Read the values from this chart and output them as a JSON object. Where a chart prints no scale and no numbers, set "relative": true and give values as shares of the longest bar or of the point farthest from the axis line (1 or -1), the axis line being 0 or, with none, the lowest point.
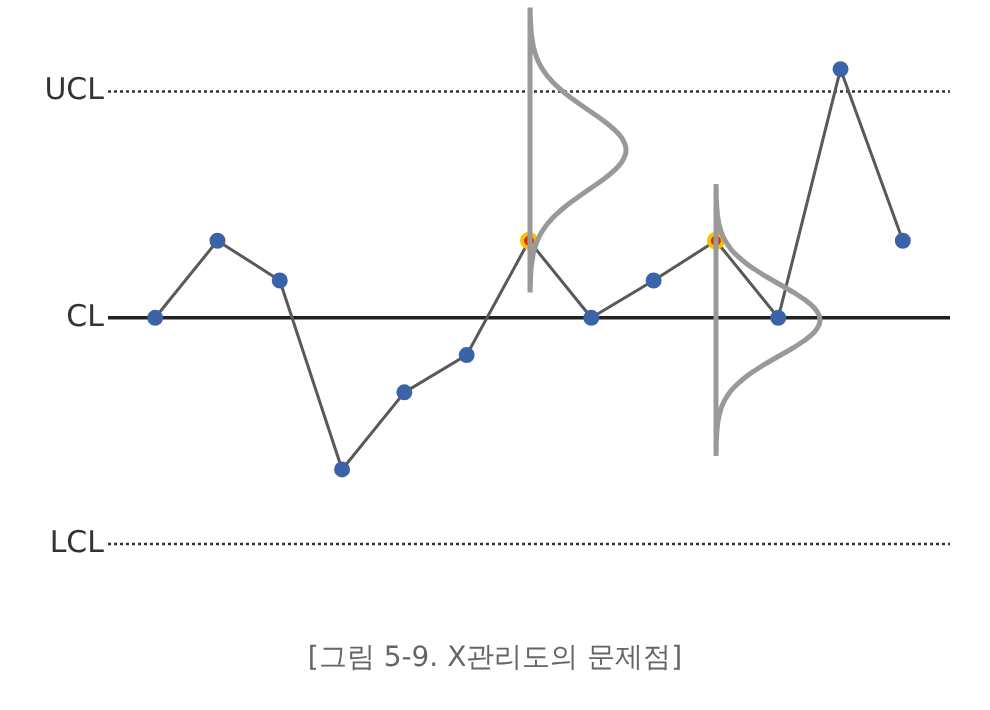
{
  "chart_data": {
    "type": "line",
    "relative": true,
    "categories": [
      null,
      null,
      null,
      null,
      null,
      null,
      null,
      null,
      null,
      null,
      null,
      null,
      null
    ],
    "series": [
      {
        "color": "#595959",
        "values": [
          0,
          0.31,
          0.15,
          -0.61,
          -0.3,
          -0.15,
          0.31,
          0,
          0.15,
          0.31,
          0,
          1,
          0.31
        ],
        "colors": [
          "#3b64a8",
          "#3b64a8",
          "#3b64a8",
          "#3b64a8",
          "#3b64a8",
          "#3b64a8",
          "#e8261e",
          "#3b64a8",
          "#3b64a8",
          "#e8261e",
          "#3b64a8",
          "#3b64a8",
          "#3b64a8"
        ]
      }
    ],
    "marker": "circle",
    "legend": false,
    "ref_lines": [
      {
        "axis": "y",
        "value": 0.91,
        "label": "UCL",
        "line_style": "dotted",
        "color": "#333333"
      },
      {
        "axis": "y",
        "value": 0,
        "label": "CL",
        "line_style": "solid",
        "color": "#222222"
      },
      {
        "axis": "y",
        "value": -0.91,
        "label": "LCL",
        "line_style": "dotted",
        "color": "#333333"
      }
    ],
    "annotations": [
      "[그림 5-9. X관리도의 문제점]"
    ]
  }
}
